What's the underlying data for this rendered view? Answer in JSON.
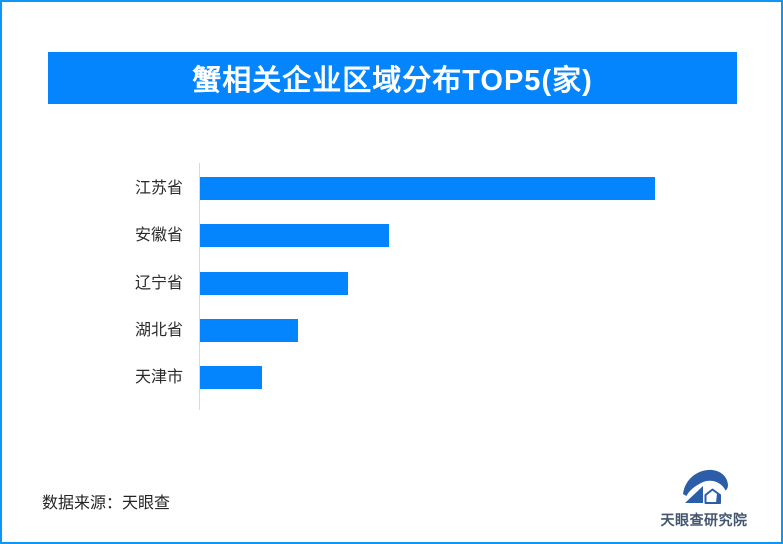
{
  "page": {
    "frame_color": "#0d97f3",
    "background_color": "#ffffff"
  },
  "header": {
    "title": "蟹相关企业区域分布TOP5(家)",
    "banner_color": "#0485fe",
    "title_color": "#ffffff"
  },
  "chart_data": {
    "type": "bar",
    "orientation": "horizontal",
    "title": "蟹相关企业区域分布TOP5(家)",
    "categories": [
      "江苏省",
      "安徽省",
      "辽宁省",
      "湖北省",
      "天津市"
    ],
    "values": [
      455,
      189,
      148,
      98,
      62
    ],
    "value_note": "chart shows no numeric labels or axis ticks; values are estimated relative bar lengths in pixels",
    "xlabel": "",
    "ylabel": "",
    "grid": false,
    "legend": false,
    "bar_color": "#0485fe",
    "axis_line_color": "#d9d9d9",
    "label_color": "#2b2b2b"
  },
  "footer": {
    "source_label": "数据来源：天眼查",
    "logo_text": "天眼查研究院",
    "logo_text_color": "#44566f",
    "logo_mark_color": "#2b5da9"
  }
}
